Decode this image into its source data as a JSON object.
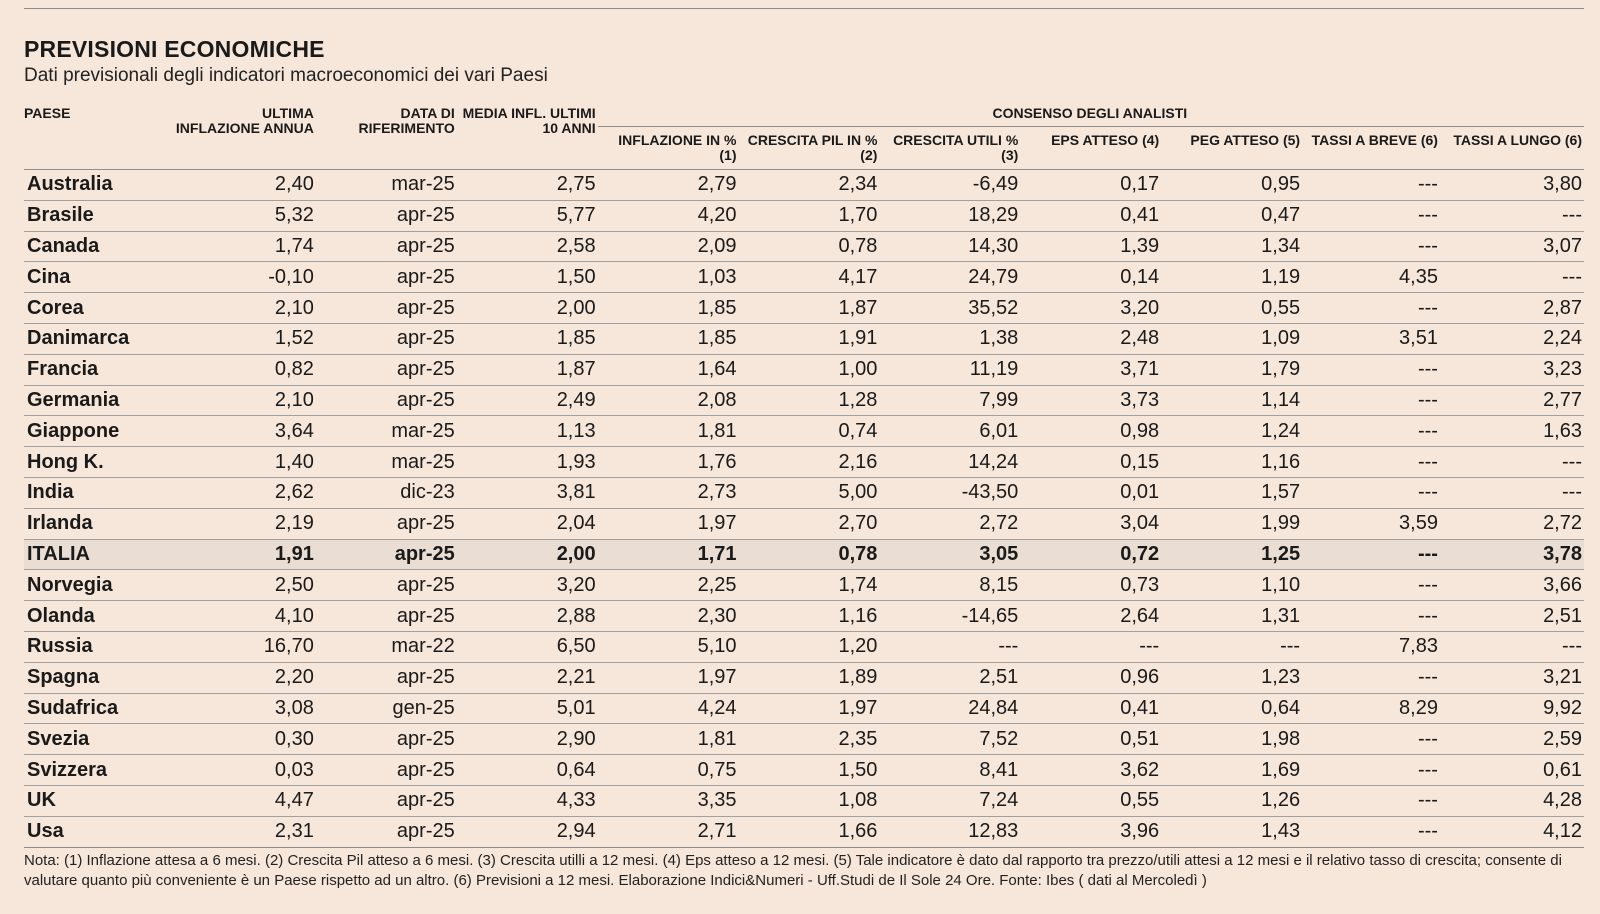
{
  "title": "PREVISIONI ECONOMICHE",
  "subtitle": "Dati previsionali degli indicatori macroeconomici dei vari Paesi",
  "headers": {
    "paese": "PAESE",
    "ultima_inflazione": "ULTIMA INFLAZIONE ANNUA",
    "data_riferimento": "DATA DI RIFERIMENTO",
    "media_infl": "MEDIA INFL. ULTIMI 10 ANNI",
    "consenso": "CONSENSO DEGLI ANALISTI",
    "inflazione": "INFLAZIONE IN % (1)",
    "crescita_pil": "CRESCITA PIL IN % (2)",
    "crescita_utili": "CRESCITA UTILI % (3)",
    "eps": "EPS ATTESO (4)",
    "peg": "PEG ATTESO (5)",
    "tassi_breve": "TASSI A BREVE (6)",
    "tassi_lungo": "TASSI A LUNGO (6)"
  },
  "rows": [
    [
      "Australia",
      "2,40",
      "mar-25",
      "2,75",
      "2,79",
      "2,34",
      "-6,49",
      "0,17",
      "0,95",
      "---",
      "3,80"
    ],
    [
      "Brasile",
      "5,32",
      "apr-25",
      "5,77",
      "4,20",
      "1,70",
      "18,29",
      "0,41",
      "0,47",
      "---",
      "---"
    ],
    [
      "Canada",
      "1,74",
      "apr-25",
      "2,58",
      "2,09",
      "0,78",
      "14,30",
      "1,39",
      "1,34",
      "---",
      "3,07"
    ],
    [
      "Cina",
      "-0,10",
      "apr-25",
      "1,50",
      "1,03",
      "4,17",
      "24,79",
      "0,14",
      "1,19",
      "4,35",
      "---"
    ],
    [
      "Corea",
      "2,10",
      "apr-25",
      "2,00",
      "1,85",
      "1,87",
      "35,52",
      "3,20",
      "0,55",
      "---",
      "2,87"
    ],
    [
      "Danimarca",
      "1,52",
      "apr-25",
      "1,85",
      "1,85",
      "1,91",
      "1,38",
      "2,48",
      "1,09",
      "3,51",
      "2,24"
    ],
    [
      "Francia",
      "0,82",
      "apr-25",
      "1,87",
      "1,64",
      "1,00",
      "11,19",
      "3,71",
      "1,79",
      "---",
      "3,23"
    ],
    [
      "Germania",
      "2,10",
      "apr-25",
      "2,49",
      "2,08",
      "1,28",
      "7,99",
      "3,73",
      "1,14",
      "---",
      "2,77"
    ],
    [
      "Giappone",
      "3,64",
      "mar-25",
      "1,13",
      "1,81",
      "0,74",
      "6,01",
      "0,98",
      "1,24",
      "---",
      "1,63"
    ],
    [
      "Hong K.",
      "1,40",
      "mar-25",
      "1,93",
      "1,76",
      "2,16",
      "14,24",
      "0,15",
      "1,16",
      "---",
      "---"
    ],
    [
      "India",
      "2,62",
      "dic-23",
      "3,81",
      "2,73",
      "5,00",
      "-43,50",
      "0,01",
      "1,57",
      "---",
      "---"
    ],
    [
      "Irlanda",
      "2,19",
      "apr-25",
      "2,04",
      "1,97",
      "2,70",
      "2,72",
      "3,04",
      "1,99",
      "3,59",
      "2,72"
    ],
    [
      "ITALIA",
      "1,91",
      "apr-25",
      "2,00",
      "1,71",
      "0,78",
      "3,05",
      "0,72",
      "1,25",
      "---",
      "3,78"
    ],
    [
      "Norvegia",
      "2,50",
      "apr-25",
      "3,20",
      "2,25",
      "1,74",
      "8,15",
      "0,73",
      "1,10",
      "---",
      "3,66"
    ],
    [
      "Olanda",
      "4,10",
      "apr-25",
      "2,88",
      "2,30",
      "1,16",
      "-14,65",
      "2,64",
      "1,31",
      "---",
      "2,51"
    ],
    [
      "Russia",
      "16,70",
      "mar-22",
      "6,50",
      "5,10",
      "1,20",
      "---",
      "---",
      "---",
      "7,83",
      "---"
    ],
    [
      "Spagna",
      "2,20",
      "apr-25",
      "2,21",
      "1,97",
      "1,89",
      "2,51",
      "0,96",
      "1,23",
      "---",
      "3,21"
    ],
    [
      "Sudafrica",
      "3,08",
      "gen-25",
      "5,01",
      "4,24",
      "1,97",
      "24,84",
      "0,41",
      "0,64",
      "8,29",
      "9,92"
    ],
    [
      "Svezia",
      "0,30",
      "apr-25",
      "2,90",
      "1,81",
      "2,35",
      "7,52",
      "0,51",
      "1,98",
      "---",
      "2,59"
    ],
    [
      "Svizzera",
      "0,03",
      "apr-25",
      "0,64",
      "0,75",
      "1,50",
      "8,41",
      "3,62",
      "1,69",
      "---",
      "0,61"
    ],
    [
      "UK",
      "4,47",
      "apr-25",
      "4,33",
      "3,35",
      "1,08",
      "7,24",
      "0,55",
      "1,26",
      "---",
      "4,28"
    ],
    [
      "Usa",
      "2,31",
      "apr-25",
      "2,94",
      "2,71",
      "1,66",
      "12,83",
      "3,96",
      "1,43",
      "---",
      "4,12"
    ]
  ],
  "highlight_country": "ITALIA",
  "note": "Nota: (1) Inflazione attesa a 6 mesi. (2) Crescita Pil atteso a 6 mesi. (3) Crescita utilli a 12 mesi. (4) Eps atteso a 12 mesi. (5) Tale indicatore è dato dal rapporto tra prezzo/utili attesi a 12 mesi e il relativo tasso di crescita; consente di valutare quanto più conveniente è un Paese rispetto ad un altro. (6) Previsioni a 12 mesi. Elaborazione Indici&Numeri - Uff.Studi de Il Sole 24 Ore. Fonte: Ibes ( dati al Mercoledì )"
}
